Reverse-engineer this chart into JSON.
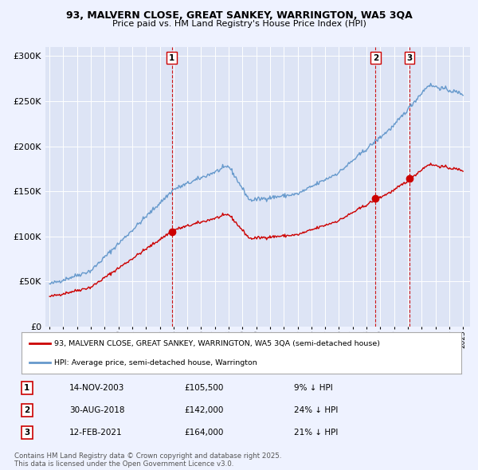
{
  "title_line1": "93, MALVERN CLOSE, GREAT SANKEY, WARRINGTON, WA5 3QA",
  "title_line2": "Price paid vs. HM Land Registry's House Price Index (HPI)",
  "legend_label_red": "93, MALVERN CLOSE, GREAT SANKEY, WARRINGTON, WA5 3QA (semi-detached house)",
  "legend_label_blue": "HPI: Average price, semi-detached house, Warrington",
  "footnote": "Contains HM Land Registry data © Crown copyright and database right 2025.\nThis data is licensed under the Open Government Licence v3.0.",
  "transactions": [
    {
      "label": "1",
      "date": "14-NOV-2003",
      "price": 105500,
      "pct": "9% ↓ HPI",
      "x": 2003.87
    },
    {
      "label": "2",
      "date": "30-AUG-2018",
      "price": 142000,
      "pct": "24% ↓ HPI",
      "x": 2018.66
    },
    {
      "label": "3",
      "date": "12-FEB-2021",
      "price": 164000,
      "pct": "21% ↓ HPI",
      "x": 2021.12
    }
  ],
  "red_line_color": "#cc0000",
  "blue_line_color": "#6699cc",
  "vline_color": "#cc0000",
  "marker_color": "#cc0000",
  "background_color": "#eef2ff",
  "plot_bg_color": "#dde4f5",
  "ylim": [
    0,
    310000
  ],
  "xlim_start": 1994.7,
  "xlim_end": 2025.5
}
